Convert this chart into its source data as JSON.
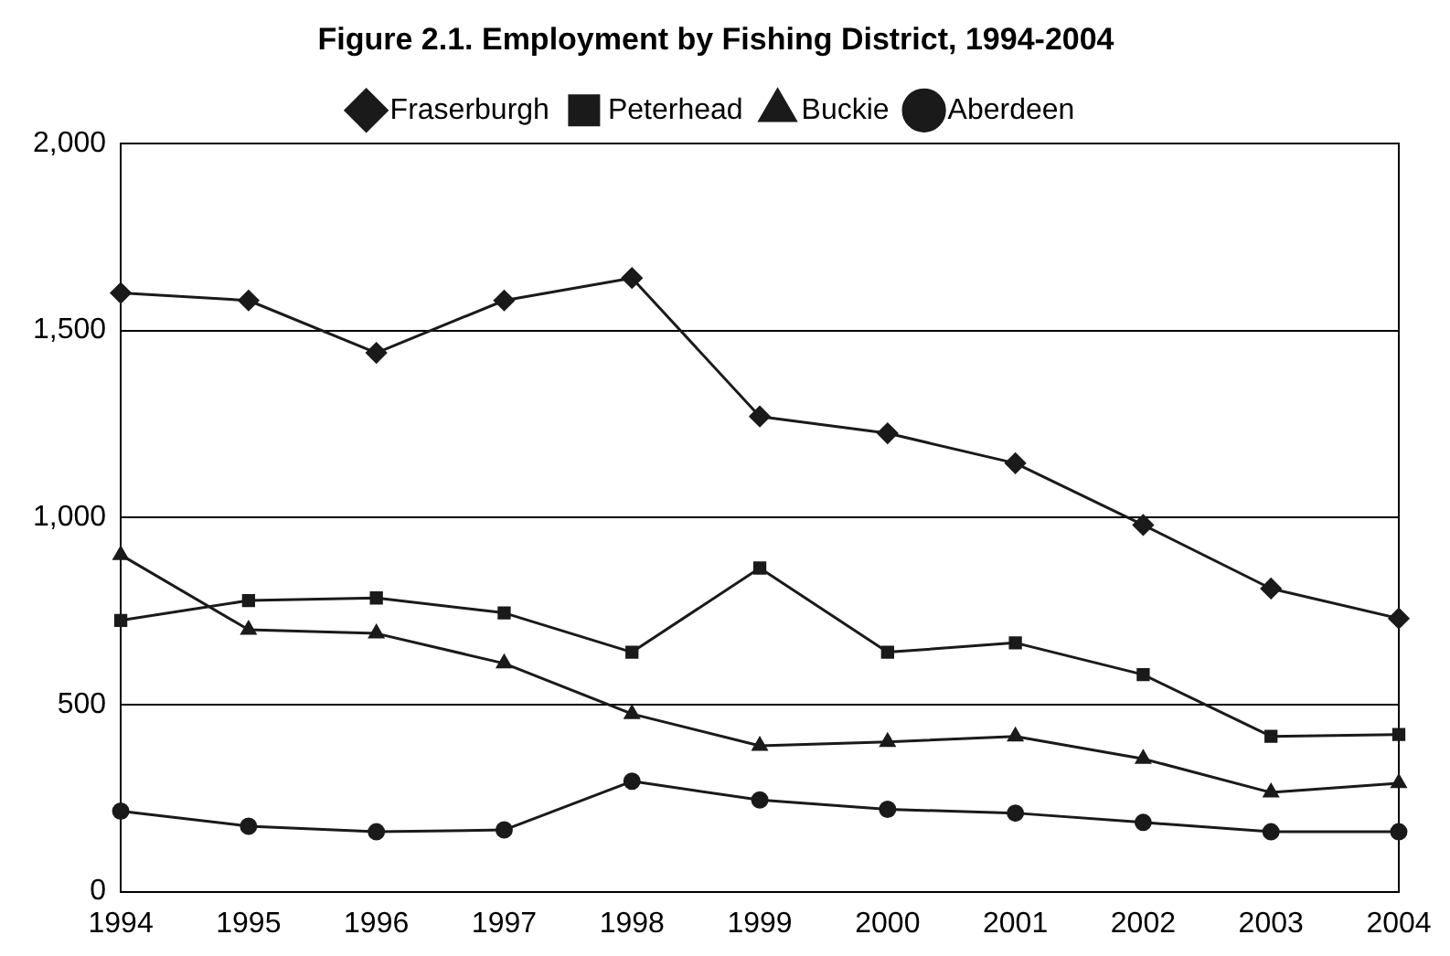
{
  "chart_data": {
    "type": "line",
    "title": "Figure 2.1. Employment by Fishing District, 1994-2004",
    "categories": [
      "1994",
      "1995",
      "1996",
      "1997",
      "1998",
      "1999",
      "2000",
      "2001",
      "2002",
      "2003",
      "2004"
    ],
    "series": [
      {
        "name": "Fraserburgh",
        "color": "#1a1a1a",
        "marker": "diamond",
        "values": [
          1600,
          1580,
          1440,
          1580,
          1640,
          1270,
          1225,
          1145,
          980,
          810,
          730
        ]
      },
      {
        "name": "Peterhead",
        "color": "#1a1a1a",
        "marker": "square",
        "values": [
          725,
          778,
          785,
          745,
          640,
          865,
          640,
          665,
          580,
          415,
          420
        ]
      },
      {
        "name": "Buckie",
        "color": "#1a1a1a",
        "marker": "triangle",
        "values": [
          900,
          700,
          690,
          610,
          475,
          390,
          400,
          415,
          355,
          265,
          290
        ]
      },
      {
        "name": "Aberdeen",
        "color": "#1a1a1a",
        "marker": "circle",
        "values": [
          215,
          175,
          160,
          165,
          295,
          245,
          220,
          210,
          185,
          160,
          160
        ]
      }
    ],
    "ylim": [
      0,
      2000
    ],
    "yticks": [
      {
        "value": 0,
        "label": "0"
      },
      {
        "value": 500,
        "label": "500"
      },
      {
        "value": 1000,
        "label": "1,000"
      },
      {
        "value": 1500,
        "label": "1,500"
      },
      {
        "value": 2000,
        "label": "2,000"
      }
    ],
    "grid": "y",
    "legend": "top",
    "line_style": "solid"
  }
}
